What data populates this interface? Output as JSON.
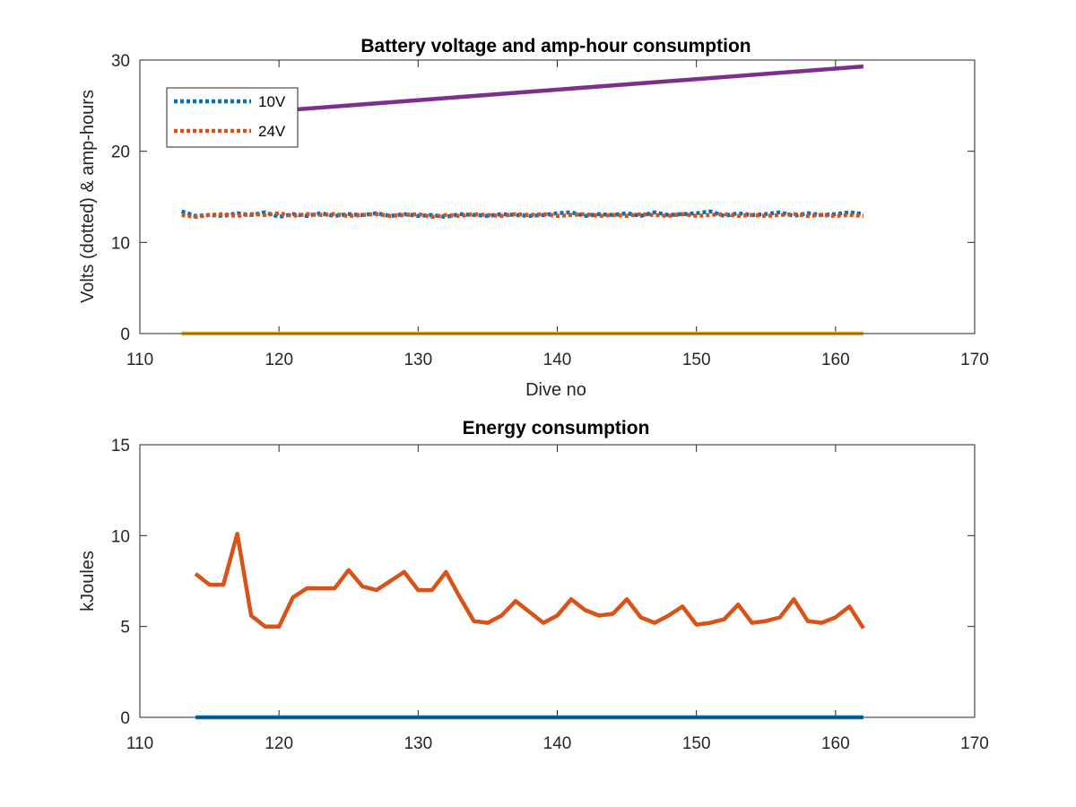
{
  "chart_data": [
    {
      "type": "line",
      "title": "Battery voltage and amp-hour consumption",
      "xlabel": "Dive no",
      "ylabel": "Volts (dotted) & amp-hours",
      "xlim": [
        110,
        170
      ],
      "ylim": [
        0,
        30
      ],
      "xticks": [
        110,
        120,
        130,
        140,
        150,
        160,
        170
      ],
      "yticks": [
        0,
        10,
        20,
        30
      ],
      "legend": {
        "placement": "top-left",
        "entries": [
          "10V",
          "24V"
        ]
      },
      "grid": false,
      "series": [
        {
          "name": "10V",
          "color": "#0072BD",
          "style": "dotted",
          "x": [
            113,
            114,
            115,
            116,
            117,
            118,
            119,
            120,
            121,
            122,
            123,
            124,
            125,
            126,
            127,
            128,
            129,
            130,
            131,
            132,
            133,
            134,
            135,
            136,
            137,
            138,
            139,
            140,
            141,
            142,
            143,
            144,
            145,
            146,
            147,
            148,
            149,
            150,
            151,
            152,
            153,
            154,
            155,
            156,
            157,
            158,
            159,
            160,
            161,
            162
          ],
          "values": [
            13.4,
            12.9,
            13.0,
            12.9,
            13.2,
            13.0,
            13.3,
            12.8,
            13.1,
            12.9,
            13.2,
            12.9,
            13.1,
            13.0,
            13.2,
            12.9,
            13.1,
            12.9,
            13.0,
            12.8,
            13.1,
            13.0,
            12.9,
            13.1,
            13.0,
            12.9,
            13.0,
            13.2,
            13.3,
            12.9,
            13.1,
            13.0,
            13.2,
            12.9,
            13.3,
            13.0,
            13.1,
            13.2,
            13.4,
            12.9,
            13.2,
            13.0,
            13.1,
            13.3,
            12.9,
            13.2,
            13.0,
            13.1,
            13.3,
            13.1
          ]
        },
        {
          "name": "24V",
          "color": "#D95319",
          "style": "dotted",
          "x": [
            113,
            114,
            115,
            116,
            117,
            118,
            119,
            120,
            121,
            122,
            123,
            124,
            125,
            126,
            127,
            128,
            129,
            130,
            131,
            132,
            133,
            134,
            135,
            136,
            137,
            138,
            139,
            140,
            141,
            142,
            143,
            144,
            145,
            146,
            147,
            148,
            149,
            150,
            151,
            152,
            153,
            154,
            155,
            156,
            157,
            158,
            159,
            160,
            161,
            162
          ],
          "values": [
            13.0,
            12.8,
            13.0,
            13.1,
            12.9,
            13.1,
            13.0,
            13.2,
            12.9,
            13.1,
            13.0,
            13.1,
            12.9,
            13.0,
            13.1,
            12.9,
            13.0,
            13.1,
            12.8,
            13.0,
            12.9,
            13.1,
            13.0,
            12.9,
            13.1,
            13.0,
            13.1,
            12.9,
            13.0,
            13.1,
            12.9,
            13.0,
            12.9,
            13.1,
            13.0,
            12.9,
            13.1,
            12.9,
            13.0,
            13.1,
            12.9,
            13.0,
            12.9,
            13.0,
            13.1,
            12.9,
            13.0,
            12.9,
            13.0,
            12.9
          ]
        },
        {
          "color": "#7E2F8E",
          "style": "solid",
          "x": [
            117,
            162
          ],
          "values": [
            24.1,
            29.3
          ]
        },
        {
          "color": "#EDB120",
          "style": "solid",
          "x": [
            113,
            162
          ],
          "values": [
            0,
            0
          ]
        }
      ]
    },
    {
      "type": "line",
      "title": "Energy consumption",
      "xlabel": "",
      "ylabel": "kJoules",
      "xlim": [
        110,
        170
      ],
      "ylim": [
        0,
        15
      ],
      "xticks": [
        110,
        120,
        130,
        140,
        150,
        160,
        170
      ],
      "yticks": [
        0,
        5,
        10,
        15
      ],
      "grid": false,
      "series": [
        {
          "color": "#D95319",
          "style": "solid",
          "x": [
            114,
            115,
            116,
            117,
            118,
            119,
            120,
            121,
            122,
            123,
            124,
            125,
            126,
            127,
            128,
            129,
            130,
            131,
            132,
            133,
            134,
            135,
            136,
            137,
            138,
            139,
            140,
            141,
            142,
            143,
            144,
            145,
            146,
            147,
            148,
            149,
            150,
            151,
            152,
            153,
            154,
            155,
            156,
            157,
            158,
            159,
            160,
            161,
            162
          ],
          "values": [
            7.9,
            7.3,
            7.3,
            10.1,
            5.6,
            5.0,
            5.0,
            6.6,
            7.1,
            7.1,
            7.1,
            8.1,
            7.2,
            7.0,
            7.5,
            8.0,
            7.0,
            7.0,
            8.0,
            6.6,
            5.3,
            5.2,
            5.6,
            6.4,
            5.8,
            5.2,
            5.6,
            6.5,
            5.9,
            5.6,
            5.7,
            6.5,
            5.5,
            5.2,
            5.6,
            6.1,
            5.1,
            5.2,
            5.4,
            6.2,
            5.2,
            5.3,
            5.5,
            6.5,
            5.3,
            5.2,
            5.5,
            6.1,
            4.9
          ]
        },
        {
          "color": "#0072BD",
          "style": "solid",
          "x": [
            114,
            162
          ],
          "values": [
            0,
            0
          ]
        }
      ]
    }
  ]
}
